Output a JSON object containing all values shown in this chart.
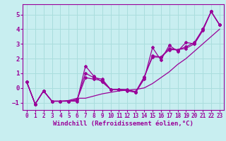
{
  "title": "",
  "xlabel": "Windchill (Refroidissement éolien,°C)",
  "ylabel": "",
  "bg_color": "#c8eef0",
  "line_color": "#990099",
  "grid_color": "#aadddd",
  "xlim": [
    -0.5,
    23.5
  ],
  "ylim": [
    -1.5,
    5.7
  ],
  "xticks": [
    0,
    1,
    2,
    3,
    4,
    5,
    6,
    7,
    8,
    9,
    10,
    11,
    12,
    13,
    14,
    15,
    16,
    17,
    18,
    19,
    20,
    21,
    22,
    23
  ],
  "yticks": [
    -1,
    0,
    1,
    2,
    3,
    4,
    5
  ],
  "series": [
    [
      0.4,
      -1.1,
      -0.2,
      -0.9,
      -0.9,
      -0.9,
      -0.9,
      1.5,
      0.8,
      0.4,
      -0.1,
      -0.1,
      -0.1,
      -0.3,
      0.6,
      2.75,
      1.9,
      2.9,
      2.5,
      3.1,
      3.0,
      4.0,
      5.2,
      4.3
    ],
    [
      0.4,
      -1.1,
      -0.2,
      -0.9,
      -0.9,
      -0.9,
      -0.8,
      1.0,
      0.7,
      0.6,
      -0.1,
      -0.1,
      -0.2,
      -0.3,
      0.7,
      2.2,
      2.1,
      2.7,
      2.6,
      2.8,
      3.1,
      4.0,
      5.2,
      4.3
    ],
    [
      0.4,
      -1.1,
      -0.2,
      -0.9,
      -0.9,
      -0.9,
      -0.8,
      0.7,
      0.6,
      0.5,
      -0.1,
      -0.1,
      -0.15,
      -0.25,
      0.75,
      2.1,
      2.1,
      2.6,
      2.6,
      2.7,
      3.0,
      3.9,
      5.2,
      4.3
    ],
    [
      0.4,
      -1.1,
      -0.2,
      -0.9,
      -0.9,
      -0.85,
      -0.7,
      -0.7,
      -0.55,
      -0.4,
      -0.3,
      -0.2,
      -0.15,
      -0.1,
      0.0,
      0.3,
      0.7,
      1.1,
      1.6,
      2.0,
      2.5,
      3.0,
      3.5,
      4.0
    ]
  ]
}
